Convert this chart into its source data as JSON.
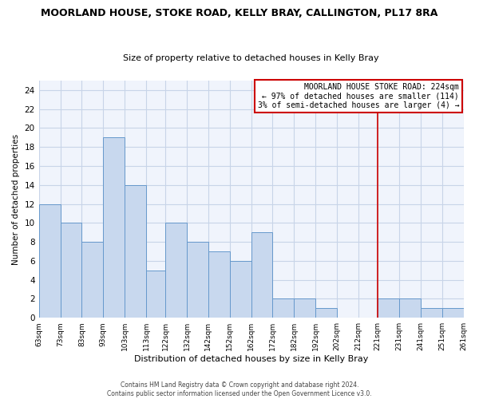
{
  "title": "MOORLAND HOUSE, STOKE ROAD, KELLY BRAY, CALLINGTON, PL17 8RA",
  "subtitle": "Size of property relative to detached houses in Kelly Bray",
  "xlabel": "Distribution of detached houses by size in Kelly Bray",
  "ylabel": "Number of detached properties",
  "bin_edges": [
    63,
    73,
    83,
    93,
    103,
    113,
    122,
    132,
    142,
    152,
    162,
    172,
    182,
    192,
    202,
    212,
    221,
    231,
    241,
    251,
    261
  ],
  "bar_heights": [
    12,
    10,
    8,
    19,
    14,
    5,
    10,
    8,
    7,
    6,
    9,
    2,
    2,
    1,
    0,
    0,
    2,
    2,
    1,
    1
  ],
  "bar_color": "#c8d8ee",
  "bar_edgecolor": "#6699cc",
  "grid_color": "#c8d4e8",
  "red_line_x": 221,
  "red_line_color": "#cc0000",
  "yticks": [
    0,
    2,
    4,
    6,
    8,
    10,
    12,
    14,
    16,
    18,
    20,
    22,
    24
  ],
  "ylim": [
    0,
    25
  ],
  "tick_labels": [
    "63sqm",
    "73sqm",
    "83sqm",
    "93sqm",
    "103sqm",
    "113sqm",
    "122sqm",
    "132sqm",
    "142sqm",
    "152sqm",
    "162sqm",
    "172sqm",
    "182sqm",
    "192sqm",
    "202sqm",
    "212sqm",
    "221sqm",
    "231sqm",
    "241sqm",
    "251sqm",
    "261sqm"
  ],
  "legend_title": "MOORLAND HOUSE STOKE ROAD: 224sqm",
  "legend_line1": "← 97% of detached houses are smaller (114)",
  "legend_line2": "3% of semi-detached houses are larger (4) →",
  "footer1": "Contains HM Land Registry data © Crown copyright and database right 2024.",
  "footer2": "Contains public sector information licensed under the Open Government Licence v3.0.",
  "bg_color": "#ffffff",
  "plot_bg_color": "#f0f4fc"
}
